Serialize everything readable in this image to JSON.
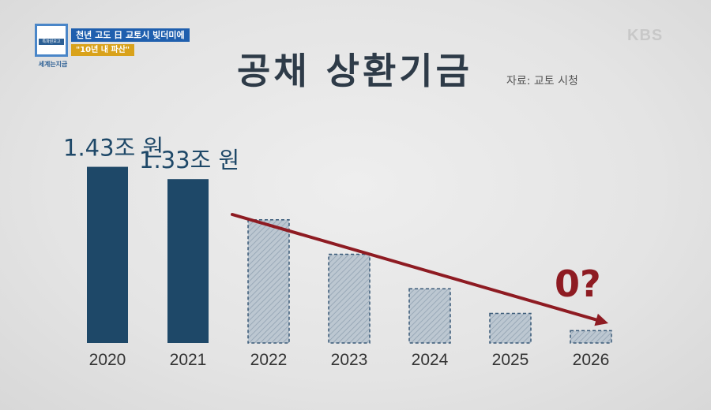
{
  "header": {
    "logo_box_text": "특파원보고",
    "logo_label": "세계는지금",
    "headline_line1": "천년 고도 日 교토시 빚더미에",
    "headline_line2": "\"10년 내 파산\"",
    "broadcaster": "KBS"
  },
  "chart_data": {
    "type": "bar",
    "title": "공채 상환기금",
    "source": "자료: 교토 시청",
    "categories": [
      "2020",
      "2021",
      "2022",
      "2023",
      "2024",
      "2025",
      "2026"
    ],
    "values": [
      1.43,
      1.33,
      1.0,
      0.72,
      0.44,
      0.24,
      0.1
    ],
    "labels": [
      "1.43조 원",
      "1.33조 원",
      "",
      "",
      "",
      "",
      ""
    ],
    "projected": [
      false,
      false,
      true,
      true,
      true,
      true,
      true
    ],
    "annotation": "0?",
    "ylim": [
      0,
      1.6
    ],
    "colors": {
      "actual": "#1e4868",
      "projected": "#b8c4cf",
      "projected_border": "#3a5a78",
      "arrow": "#8e1b22",
      "axis_text": "#333333"
    }
  }
}
